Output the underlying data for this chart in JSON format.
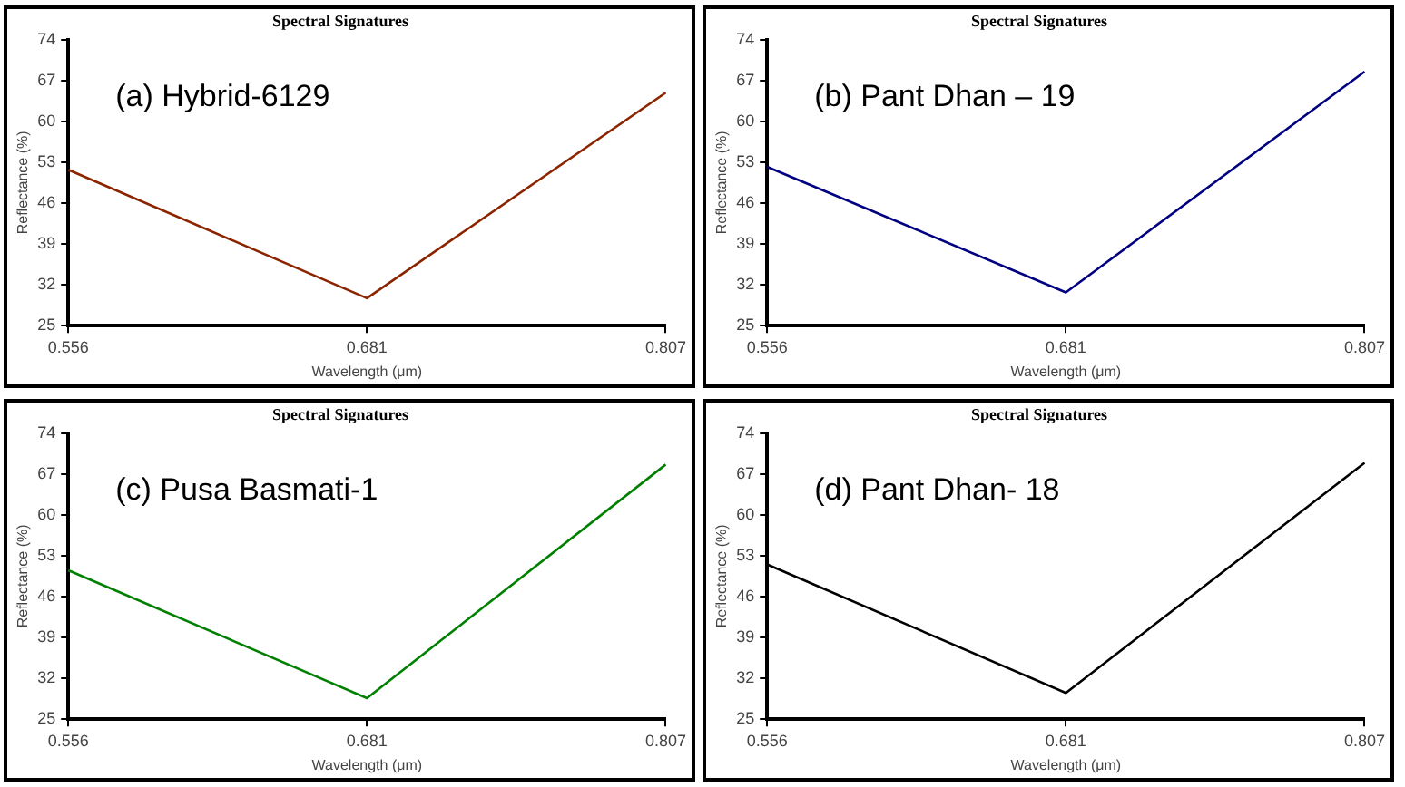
{
  "chart_data": [
    {
      "type": "line",
      "title": "Spectral Signatures",
      "xlabel": "Wavelength (μm)",
      "ylabel": "Reflectance (%)",
      "annotations": [
        "(a) Hybrid-6129"
      ],
      "categories": [
        "0.556",
        "0.681",
        "0.807"
      ],
      "series": [
        {
          "color": "#8b2500",
          "values": [
            51.7,
            29.7,
            64.9
          ]
        }
      ],
      "ylim": [
        25,
        74
      ],
      "yticks": [
        25,
        32,
        39,
        46,
        53,
        60,
        67,
        74
      ],
      "grid": false,
      "legend": false,
      "marker": "none",
      "line_style": "solid"
    },
    {
      "type": "line",
      "title": "Spectral Signatures",
      "xlabel": "Wavelength (μm)",
      "ylabel": "Reflectance (%)",
      "annotations": [
        "(b) Pant Dhan – 19"
      ],
      "categories": [
        "0.556",
        "0.681",
        "0.807"
      ],
      "series": [
        {
          "color": "#000080",
          "values": [
            52.2,
            30.7,
            68.5
          ]
        }
      ],
      "ylim": [
        25,
        74
      ],
      "yticks": [
        25,
        32,
        39,
        46,
        53,
        60,
        67,
        74
      ],
      "grid": false,
      "legend": false,
      "marker": "none",
      "line_style": "solid"
    },
    {
      "type": "line",
      "title": "Spectral Signatures",
      "xlabel": "Wavelength (μm)",
      "ylabel": "Reflectance (%)",
      "annotations": [
        "(c) Pusa Basmati-1"
      ],
      "categories": [
        "0.556",
        "0.681",
        "0.807"
      ],
      "series": [
        {
          "color": "#008000",
          "values": [
            50.5,
            28.6,
            68.6
          ]
        }
      ],
      "ylim": [
        25,
        74
      ],
      "yticks": [
        25,
        32,
        39,
        46,
        53,
        60,
        67,
        74
      ],
      "grid": false,
      "legend": false,
      "marker": "none",
      "line_style": "solid"
    },
    {
      "type": "line",
      "title": "Spectral Signatures",
      "xlabel": "Wavelength (μm)",
      "ylabel": "Reflectance (%)",
      "annotations": [
        "(d) Pant Dhan- 18"
      ],
      "categories": [
        "0.556",
        "0.681",
        "0.807"
      ],
      "series": [
        {
          "color": "#000000",
          "values": [
            51.5,
            29.5,
            68.9
          ]
        }
      ],
      "ylim": [
        25,
        74
      ],
      "yticks": [
        25,
        32,
        39,
        46,
        53,
        60,
        67,
        74
      ],
      "grid": false,
      "legend": false,
      "marker": "none",
      "line_style": "solid"
    }
  ]
}
